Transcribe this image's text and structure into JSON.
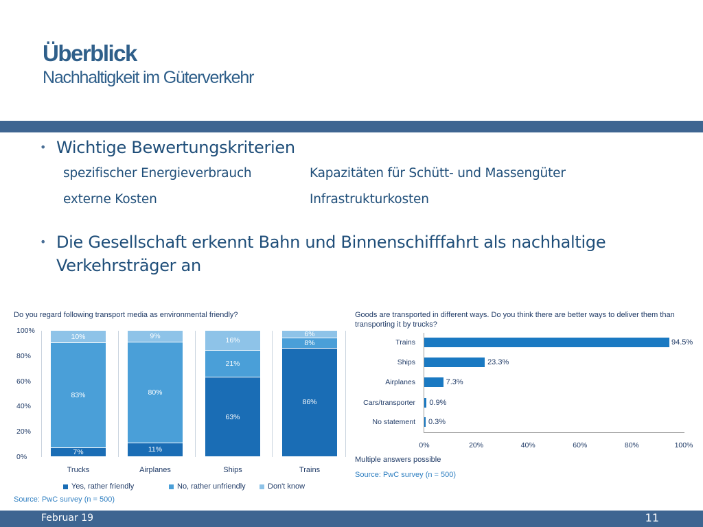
{
  "slide": {
    "title": "Überblick",
    "subtitle": "Nachhaltigkeit im Güterverkehr",
    "bullet1": "Wichtige Bewertungskriterien",
    "criteria": [
      "spezifischer Energieverbrauch",
      "Kapazitäten für Schütt- und Massengüter",
      "externe Kosten",
      "Infrastrukturkosten"
    ],
    "bullet2": "Die Gesellschaft erkennt Bahn und Binnenschifffahrt als nachhaltige Verkehrsträger an",
    "footer_date": "Februar 19",
    "page_number": "11"
  },
  "colors": {
    "band": "#3e6591",
    "dark_blue": "#1a6db5",
    "mid_blue": "#4a9fd8",
    "light_blue": "#8ec3e8"
  },
  "chart_data": [
    {
      "type": "bar",
      "stacked": true,
      "title": "Do you regard following transport media as environmental friendly?",
      "categories": [
        "Trucks",
        "Airplanes",
        "Ships",
        "Trains"
      ],
      "series": [
        {
          "name": "Yes, rather friendly",
          "values": [
            7,
            11,
            63,
            86
          ],
          "color": "#1a6db5"
        },
        {
          "name": "No, rather unfriendly",
          "values": [
            83,
            80,
            21,
            8
          ],
          "color": "#4a9fd8"
        },
        {
          "name": "Don't know",
          "values": [
            10,
            9,
            16,
            6
          ],
          "color": "#8ec3e8"
        }
      ],
      "yticks": [
        "0%",
        "20%",
        "40%",
        "60%",
        "80%",
        "100%"
      ],
      "ylim": [
        0,
        100
      ],
      "legend": "bottom",
      "source": "Source: PwC survey (n = 500)"
    },
    {
      "type": "bar",
      "orientation": "horizontal",
      "title": "Goods are transported in different ways. Do you think there are better ways to deliver them than transporting it by trucks?",
      "categories": [
        "Trains",
        "Ships",
        "Airplanes",
        "Cars/transporter",
        "No statement"
      ],
      "values": [
        94.5,
        23.3,
        7.3,
        0.9,
        0.3
      ],
      "labels": [
        "94.5%",
        "23.3%",
        "7.3%",
        "0.9%",
        "0.3%"
      ],
      "xticks": [
        "0%",
        "20%",
        "40%",
        "60%",
        "80%",
        "100%"
      ],
      "xlim": [
        0,
        100
      ],
      "note": "Multiple answers possible",
      "source": "Source: PwC survey (n = 500)"
    }
  ]
}
